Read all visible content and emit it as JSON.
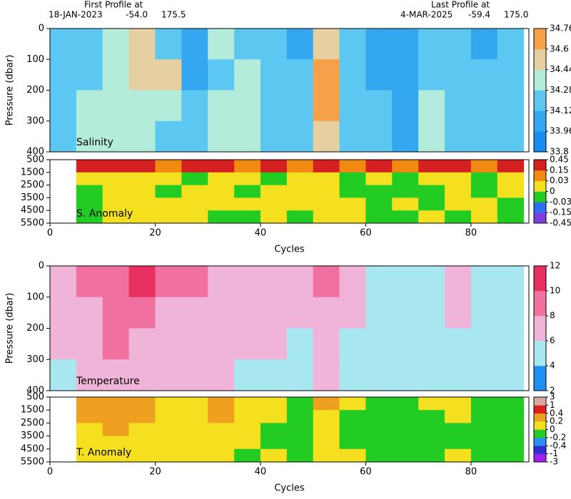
{
  "header": {
    "first_label": "First Profile at",
    "first_date": "18-JAN-2023",
    "first_lat": "-54.0",
    "first_lon": "175.5",
    "last_label": "Last Profile at",
    "last_date": "4-MAR-2025",
    "last_lat": "-59.4",
    "last_lon": "175.0"
  },
  "chart_data": [
    {
      "type": "heatmap",
      "label": "Salinity",
      "ylabel": "Pressure (dbar)",
      "x": [
        0,
        5,
        10,
        15,
        20,
        25,
        30,
        35,
        40,
        45,
        50,
        55,
        60,
        65,
        70,
        75,
        80,
        85,
        90
      ],
      "y": [
        0,
        100,
        200,
        300,
        400
      ],
      "xlim": [
        0,
        91
      ],
      "ylim": [
        0,
        400
      ],
      "yticks": [
        0,
        100,
        200,
        300,
        400
      ],
      "values": [
        [
          34.2,
          34.15,
          34.3,
          34.5,
          34.2,
          34.1,
          34.3,
          34.2,
          34.25,
          34.1,
          34.55,
          34.2,
          34.1,
          34.05,
          34.15,
          34.2,
          34.1,
          34.2
        ],
        [
          34.2,
          34.25,
          34.35,
          34.5,
          34.45,
          34.1,
          34.2,
          34.3,
          34.2,
          34.15,
          34.6,
          34.2,
          34.1,
          34.05,
          34.2,
          34.2,
          34.15,
          34.2
        ],
        [
          34.2,
          34.3,
          34.35,
          34.4,
          34.3,
          34.15,
          34.3,
          34.35,
          34.2,
          34.2,
          34.6,
          34.2,
          34.2,
          34.1,
          34.3,
          34.2,
          34.2,
          34.2
        ],
        [
          34.2,
          34.3,
          34.3,
          34.35,
          34.25,
          34.2,
          34.3,
          34.3,
          34.2,
          34.2,
          34.5,
          34.2,
          34.2,
          34.1,
          34.3,
          34.25,
          34.2,
          34.2
        ]
      ],
      "colorbar": {
        "ticks": [
          33.8,
          33.96,
          34.12,
          34.28,
          34.44,
          34.6,
          34.76
        ],
        "colors": [
          "#1a8ef0",
          "#33a8f0",
          "#5cc8f2",
          "#b4ecdc",
          "#e6cfa0",
          "#f5a14a"
        ]
      }
    },
    {
      "type": "heatmap",
      "label": "S. Anomaly",
      "xlabel": "Cycles",
      "x": [
        0,
        5,
        10,
        15,
        20,
        25,
        30,
        35,
        40,
        45,
        50,
        55,
        60,
        65,
        70,
        75,
        80,
        85,
        90
      ],
      "y": [
        500,
        1500,
        2500,
        3500,
        4500,
        5500
      ],
      "xlim": [
        0,
        91
      ],
      "ylim": [
        500,
        5500
      ],
      "xticks": [
        0,
        20,
        40,
        60,
        80
      ],
      "yticks": [
        500,
        1500,
        2500,
        3500,
        4500,
        5500
      ],
      "values": [
        [
          null,
          0.2,
          0.2,
          0.2,
          0.1,
          0.2,
          0.2,
          0.1,
          0.2,
          0.1,
          0.2,
          0.1,
          0.2,
          0.1,
          0.2,
          0.2,
          0.1,
          0.2
        ],
        [
          null,
          0.01,
          0.01,
          0.01,
          0.01,
          -0.01,
          0.01,
          0.01,
          -0.01,
          0.01,
          0.01,
          -0.01,
          0.01,
          -0.01,
          0.01,
          0.01,
          -0.01,
          0.01
        ],
        [
          null,
          -0.01,
          0.01,
          0.01,
          -0.01,
          0.01,
          0.01,
          -0.01,
          0.01,
          0.01,
          0.01,
          -0.01,
          -0.01,
          -0.01,
          -0.01,
          0.01,
          -0.01,
          0.01
        ],
        [
          null,
          -0.01,
          0.01,
          0.01,
          0.01,
          0.01,
          0.01,
          0.01,
          0.01,
          0.01,
          0.01,
          0.01,
          -0.01,
          0.01,
          -0.01,
          0.01,
          0.01,
          -0.01
        ],
        [
          null,
          -0.01,
          0.01,
          0.01,
          0.01,
          0.01,
          -0.01,
          -0.01,
          0.01,
          -0.01,
          0.01,
          0.01,
          -0.01,
          -0.01,
          0.01,
          -0.01,
          0.01,
          -0.01
        ]
      ],
      "colorbar": {
        "ticks": [
          -0.45,
          -0.15,
          -0.03,
          0,
          0.03,
          0.15,
          0.45
        ],
        "colors": [
          "#7b3fe0",
          "#2f6ef0",
          "#22cc22",
          "#f5e020",
          "#f08a10",
          "#d42020"
        ]
      }
    },
    {
      "type": "heatmap",
      "label": "Temperature",
      "ylabel": "Pressure (dbar)",
      "x": [
        0,
        5,
        10,
        15,
        20,
        25,
        30,
        35,
        40,
        45,
        50,
        55,
        60,
        65,
        70,
        75,
        80,
        85,
        90
      ],
      "y": [
        0,
        100,
        200,
        300,
        400
      ],
      "xlim": [
        0,
        91
      ],
      "ylim": [
        0,
        400
      ],
      "yticks": [
        0,
        100,
        200,
        300,
        400
      ],
      "values": [
        [
          7,
          8,
          9,
          10,
          8,
          8,
          7,
          7,
          7,
          6.5,
          8,
          6,
          5,
          5.5,
          5,
          6,
          5,
          5.5
        ],
        [
          7,
          7,
          9,
          8.5,
          7,
          7.5,
          7,
          6.5,
          7,
          6,
          7.5,
          6,
          5,
          5,
          5,
          6,
          5,
          5.5
        ],
        [
          6,
          7,
          8,
          7.5,
          7,
          7,
          6.5,
          6,
          6,
          5.5,
          7,
          5.5,
          5,
          4.5,
          5,
          5.5,
          5,
          5
        ],
        [
          5.5,
          6.5,
          7,
          7,
          6,
          6.5,
          6,
          5.5,
          5.5,
          5,
          6.5,
          5,
          5,
          4,
          5,
          5,
          5,
          5
        ]
      ],
      "colorbar": {
        "ticks": [
          2,
          4,
          6,
          8,
          10,
          12
        ],
        "colors": [
          "#1e90f0",
          "#a8e6f0",
          "#f0b4d8",
          "#f070a0",
          "#e83060"
        ]
      }
    },
    {
      "type": "heatmap",
      "label": "T. Anomaly",
      "xlabel": "Cycles",
      "x": [
        0,
        5,
        10,
        15,
        20,
        25,
        30,
        35,
        40,
        45,
        50,
        55,
        60,
        65,
        70,
        75,
        80,
        85,
        90
      ],
      "y": [
        500,
        1500,
        2500,
        3500,
        4500,
        5500
      ],
      "xlim": [
        0,
        91
      ],
      "ylim": [
        500,
        5500
      ],
      "xticks": [
        0,
        20,
        40,
        60,
        80
      ],
      "yticks": [
        500,
        1500,
        2500,
        3500,
        4500,
        5500
      ],
      "values": [
        [
          null,
          0.3,
          0.3,
          0.3,
          0.1,
          0.1,
          0.3,
          0.1,
          0.1,
          -0.1,
          0.3,
          0.1,
          -0.1,
          -0.1,
          0.1,
          0.1,
          -0.1,
          -0.1
        ],
        [
          null,
          0.3,
          0.3,
          0.3,
          0.1,
          0.1,
          0.3,
          0.1,
          0.1,
          -0.1,
          0.1,
          -0.1,
          -0.1,
          -0.1,
          -0.1,
          0.1,
          -0.1,
          -0.1
        ],
        [
          null,
          0.1,
          0.3,
          0.1,
          0.1,
          0.1,
          0.1,
          0.1,
          -0.1,
          -0.1,
          0.1,
          -0.1,
          -0.1,
          -0.1,
          -0.1,
          -0.1,
          -0.1,
          -0.1
        ],
        [
          null,
          0.1,
          0.1,
          0.1,
          0.1,
          0.1,
          0.1,
          0.1,
          -0.1,
          -0.1,
          0.1,
          -0.1,
          -0.1,
          -0.1,
          -0.1,
          -0.1,
          -0.1,
          -0.1
        ],
        [
          null,
          0.1,
          0.1,
          0.1,
          0.1,
          0.1,
          0.1,
          -0.1,
          0.1,
          -0.1,
          0.1,
          0.1,
          -0.1,
          -0.1,
          -0.1,
          0.1,
          -0.1,
          -0.1
        ]
      ],
      "colorbar": {
        "ticks": [
          -3,
          -1,
          -0.4,
          -0.2,
          0,
          0.2,
          0.4,
          1,
          3
        ],
        "colors": [
          "#a020f0",
          "#3030d0",
          "#2e8ff0",
          "#22cc22",
          "#f5e020",
          "#f0a020",
          "#e02020",
          "#d8a8a0"
        ]
      }
    }
  ]
}
